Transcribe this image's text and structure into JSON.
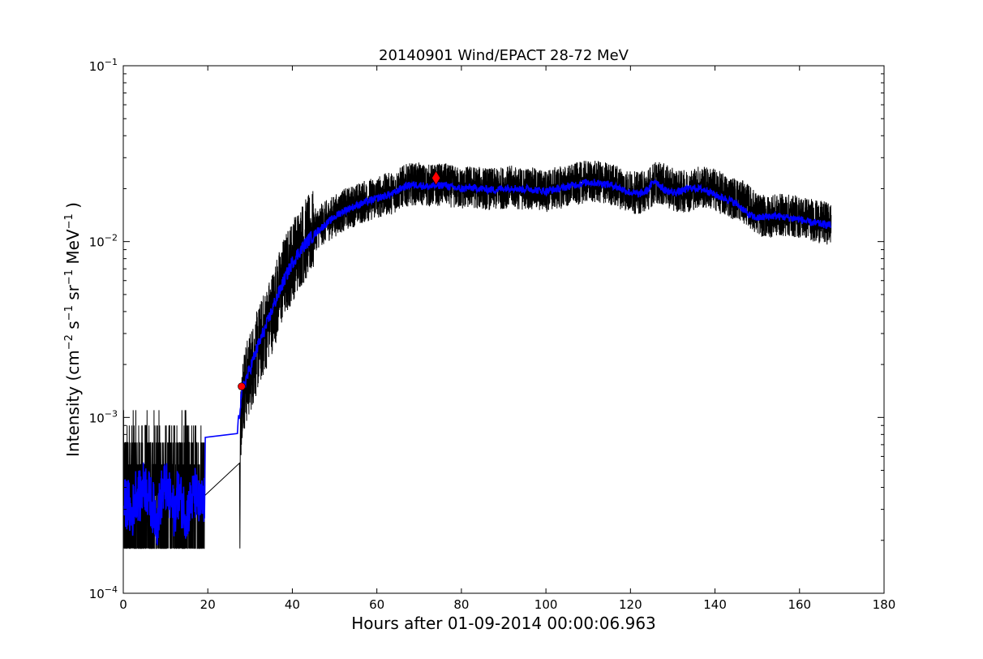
{
  "chart_data": {
    "type": "line",
    "title": "20140901 Wind/EPACT 28-72 MeV",
    "xlabel": "Hours after 01-09-2014 00:00:06.963",
    "ylabel_parts": [
      "Intensity (cm",
      "−2",
      " s",
      "−1",
      " sr",
      "−1",
      " MeV",
      "−1",
      " )"
    ],
    "xlim": [
      0,
      180
    ],
    "ylim": [
      0.0001,
      0.1
    ],
    "yscale": "log",
    "grid": false,
    "legend": "none",
    "x_ticks": [
      0,
      20,
      40,
      60,
      80,
      100,
      120,
      140,
      160,
      180
    ],
    "x_tick_labels": [
      "0",
      "20",
      "40",
      "60",
      "80",
      "100",
      "120",
      "140",
      "160",
      "180"
    ],
    "y_ticks": [
      {
        "value": 0.0001,
        "base": "10",
        "exp": "−4"
      },
      {
        "value": 0.001,
        "base": "10",
        "exp": "−3"
      },
      {
        "value": 0.01,
        "base": "10",
        "exp": "−2"
      },
      {
        "value": 0.1,
        "base": "10",
        "exp": "−1"
      }
    ],
    "series": [
      {
        "color": "#000000",
        "style": "noisy raw intensity",
        "x": [
          0,
          2,
          4,
          6,
          8,
          10,
          12,
          14,
          16,
          18,
          19.3,
          27.5,
          28,
          30,
          32,
          34,
          36,
          38,
          40,
          42,
          44,
          46,
          48,
          50,
          52,
          54,
          56,
          58,
          60,
          62,
          64,
          66,
          68,
          70,
          72,
          74,
          76,
          78,
          80,
          82,
          84,
          86,
          88,
          90,
          92,
          94,
          96,
          98,
          100,
          102,
          104,
          106,
          108,
          110,
          112,
          114,
          116,
          118,
          120,
          122,
          124,
          126,
          128,
          130,
          132,
          134,
          136,
          138,
          140,
          142,
          144,
          146,
          148,
          150,
          152,
          154,
          156,
          158,
          160,
          162,
          164,
          166,
          167.5
        ],
        "y": [
          0.00032,
          0.00035,
          0.0004,
          0.00035,
          0.0003,
          0.00034,
          0.00038,
          0.00033,
          0.0003,
          0.00034,
          0.00036,
          0.00055,
          0.0013,
          0.0018,
          0.0025,
          0.0033,
          0.0045,
          0.0062,
          0.0078,
          0.0095,
          0.0108,
          0.012,
          0.013,
          0.014,
          0.015,
          0.0158,
          0.0165,
          0.0172,
          0.0178,
          0.0185,
          0.019,
          0.0205,
          0.0212,
          0.0213,
          0.0208,
          0.021,
          0.0212,
          0.0205,
          0.02,
          0.0205,
          0.0202,
          0.02,
          0.0198,
          0.0203,
          0.0205,
          0.0199,
          0.0202,
          0.0197,
          0.0194,
          0.02,
          0.0204,
          0.021,
          0.0215,
          0.022,
          0.0218,
          0.0215,
          0.021,
          0.02,
          0.0192,
          0.0188,
          0.0198,
          0.0218,
          0.021,
          0.0198,
          0.0192,
          0.0195,
          0.0205,
          0.0202,
          0.0198,
          0.0185,
          0.0178,
          0.0172,
          0.016,
          0.0143,
          0.0138,
          0.014,
          0.0142,
          0.014,
          0.0138,
          0.0136,
          0.013,
          0.0128,
          0.0126
        ]
      },
      {
        "color": "#0000ff",
        "style": "smoothed intensity",
        "x": [
          0,
          1,
          2,
          3,
          4,
          5,
          6,
          7,
          8,
          9,
          10,
          11,
          12,
          13,
          14,
          15,
          16,
          17,
          18,
          19.3,
          19.4,
          27,
          28,
          30,
          32,
          34,
          36,
          38,
          40,
          42,
          44,
          46,
          48,
          50,
          52,
          54,
          56,
          58,
          60,
          62,
          64,
          66,
          68,
          70,
          72,
          74,
          76,
          78,
          80,
          82,
          84,
          86,
          88,
          90,
          92,
          94,
          96,
          98,
          100,
          102,
          104,
          106,
          108,
          110,
          112,
          114,
          116,
          118,
          120,
          122,
          124,
          125.8,
          127,
          128,
          130,
          132,
          134,
          136,
          138,
          140,
          142,
          144,
          146,
          148,
          150,
          152,
          154,
          156,
          158,
          160,
          162,
          164,
          166,
          167.5
        ],
        "y": [
          0.00031,
          0.00033,
          0.00027,
          0.00038,
          0.00035,
          0.00042,
          0.00036,
          0.00031,
          0.00026,
          0.00036,
          0.00041,
          0.00034,
          0.00029,
          0.00037,
          0.00032,
          0.00028,
          0.00033,
          0.00037,
          0.00031,
          0.00034,
          0.00077,
          0.00081,
          0.0014,
          0.0019,
          0.0026,
          0.0034,
          0.0046,
          0.006,
          0.0076,
          0.009,
          0.0103,
          0.0115,
          0.0126,
          0.0138,
          0.0149,
          0.0156,
          0.0163,
          0.017,
          0.0176,
          0.0182,
          0.0188,
          0.0203,
          0.021,
          0.021,
          0.0205,
          0.0208,
          0.021,
          0.0203,
          0.0199,
          0.0203,
          0.0201,
          0.0198,
          0.0197,
          0.0201,
          0.0203,
          0.0198,
          0.02,
          0.0196,
          0.0193,
          0.0198,
          0.0202,
          0.0208,
          0.0213,
          0.0218,
          0.0216,
          0.0213,
          0.0208,
          0.0199,
          0.019,
          0.0186,
          0.0195,
          0.0225,
          0.0208,
          0.0197,
          0.019,
          0.0193,
          0.0202,
          0.02,
          0.0196,
          0.0184,
          0.0177,
          0.017,
          0.0158,
          0.0142,
          0.0136,
          0.0138,
          0.014,
          0.0138,
          0.0136,
          0.0134,
          0.0129,
          0.0127,
          0.0125,
          0.0124
        ]
      }
    ],
    "markers": [
      {
        "shape": "circle",
        "color": "#ff0000",
        "x": 28,
        "y": 0.0015
      },
      {
        "shape": "diamond",
        "color": "#ff0000",
        "x": 74,
        "y": 0.023
      }
    ]
  }
}
